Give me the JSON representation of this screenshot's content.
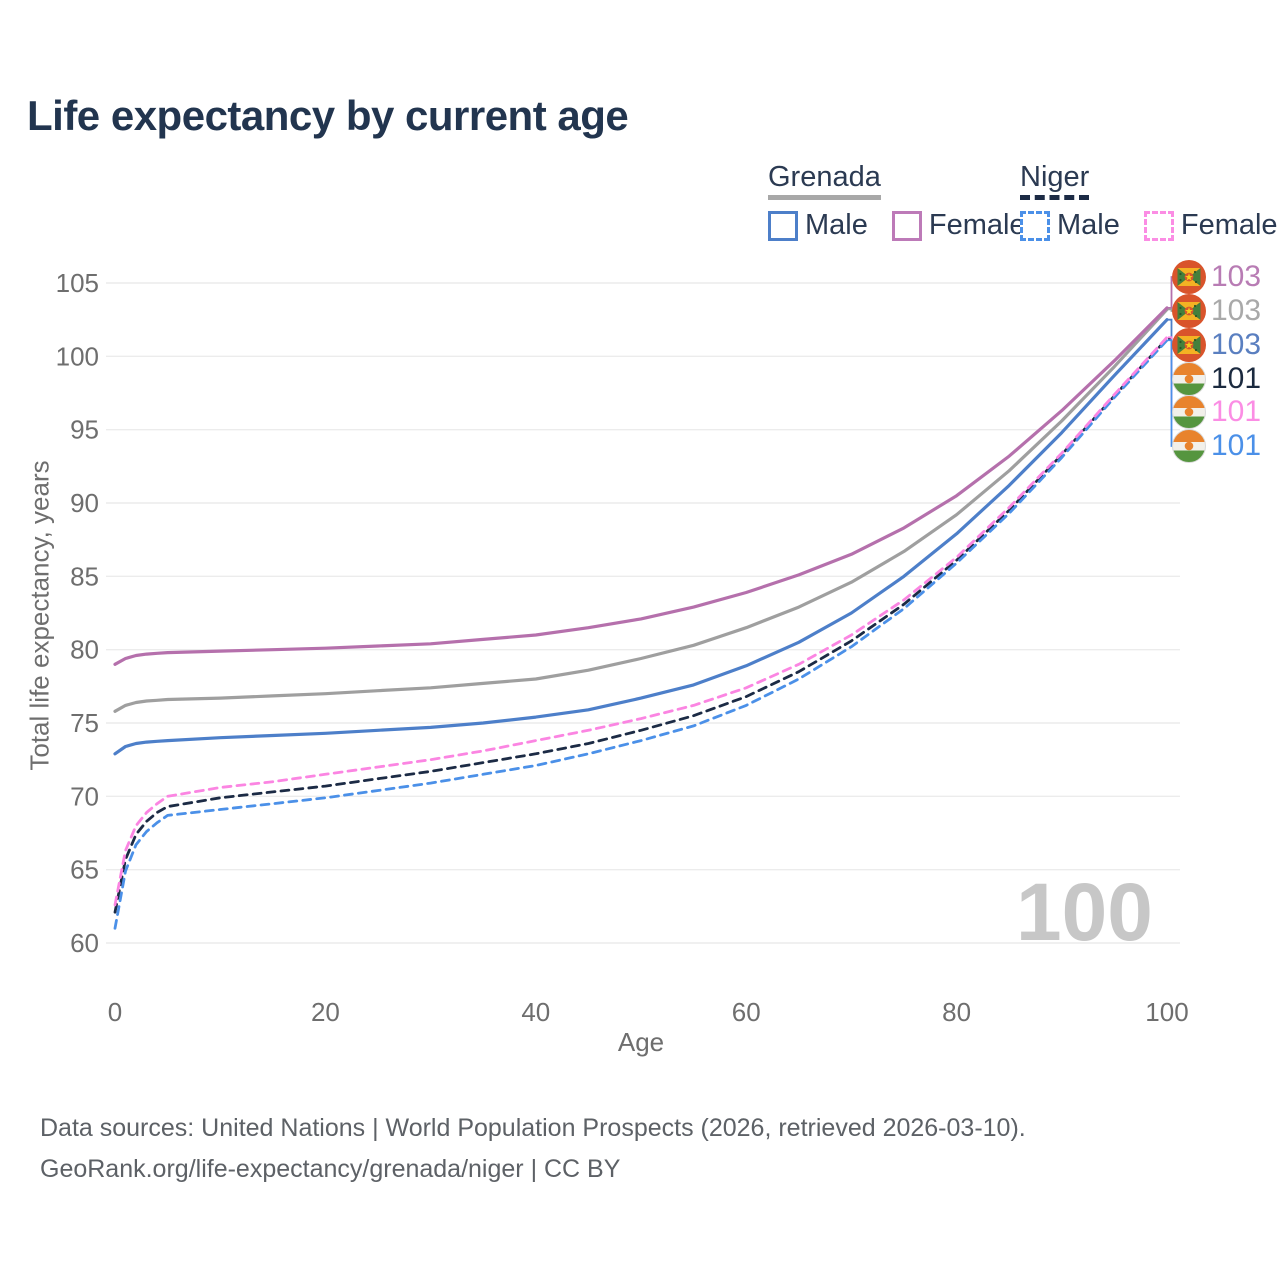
{
  "header": {
    "title": "Life expectancy by current age"
  },
  "legend": {
    "groups": [
      {
        "title": "Grenada",
        "line_style": "solid",
        "sample_color": "#a8a8a8",
        "items": [
          {
            "label": "Male",
            "color": "#4d7fc9",
            "style": "solid"
          },
          {
            "label": "Female",
            "color": "#bd7ab8",
            "style": "solid"
          }
        ]
      },
      {
        "title": "Niger",
        "line_style": "dashed",
        "sample_color": "#1c2b45",
        "items": [
          {
            "label": "Male",
            "color": "#4b90e8",
            "style": "dashed"
          },
          {
            "label": "Female",
            "color": "#fb8de4",
            "style": "dashed"
          }
        ]
      }
    ]
  },
  "chart_data": {
    "type": "line",
    "title": "Life expectancy by current age",
    "xlabel": "Age",
    "ylabel": "Total life expectancy, years",
    "xlim": [
      0,
      100
    ],
    "ylim": [
      60,
      105
    ],
    "xticks": [
      0,
      20,
      40,
      60,
      80,
      100
    ],
    "yticks": [
      60,
      65,
      70,
      75,
      80,
      85,
      90,
      95,
      100,
      105
    ],
    "grid": "horizontal",
    "legend_position": "top-right",
    "frame_label": "100",
    "x": [
      0,
      1,
      2,
      3,
      4,
      5,
      10,
      15,
      20,
      25,
      30,
      35,
      40,
      45,
      50,
      55,
      60,
      65,
      70,
      75,
      80,
      85,
      90,
      95,
      100
    ],
    "series": [
      {
        "name": "Grenada Female",
        "color": "#b570ac",
        "dash": "solid",
        "end_label": "103",
        "values": [
          79.0,
          79.4,
          79.6,
          79.7,
          79.75,
          79.8,
          79.9,
          80.0,
          80.1,
          80.25,
          80.4,
          80.7,
          81.0,
          81.5,
          82.1,
          82.9,
          83.9,
          85.1,
          86.5,
          88.3,
          90.5,
          93.2,
          96.3,
          99.7,
          103.3
        ]
      },
      {
        "name": "Grenada",
        "color": "#9f9f9f",
        "dash": "solid",
        "end_label": "103",
        "values": [
          75.8,
          76.2,
          76.4,
          76.5,
          76.55,
          76.6,
          76.7,
          76.85,
          77.0,
          77.2,
          77.4,
          77.7,
          78.0,
          78.6,
          79.4,
          80.3,
          81.5,
          82.9,
          84.6,
          86.7,
          89.2,
          92.2,
          95.6,
          99.3,
          103.2
        ]
      },
      {
        "name": "Grenada Male",
        "color": "#4d7fc9",
        "dash": "solid",
        "end_label": "103",
        "values": [
          72.9,
          73.4,
          73.6,
          73.7,
          73.75,
          73.8,
          74.0,
          74.15,
          74.3,
          74.5,
          74.7,
          75.0,
          75.4,
          75.9,
          76.7,
          77.6,
          78.9,
          80.5,
          82.5,
          85.0,
          87.9,
          91.2,
          94.8,
          98.7,
          102.5
        ]
      },
      {
        "name": "Niger",
        "color": "#1c2b45",
        "dash": "dashed",
        "end_label": "101",
        "values": [
          62.1,
          65.7,
          67.4,
          68.3,
          68.9,
          69.3,
          69.9,
          70.3,
          70.7,
          71.2,
          71.7,
          72.3,
          72.9,
          73.6,
          74.5,
          75.5,
          76.8,
          78.5,
          80.6,
          83.1,
          86.1,
          89.5,
          93.3,
          97.3,
          101.2
        ]
      },
      {
        "name": "Niger Female",
        "color": "#fb85e2",
        "dash": "dashed",
        "end_label": "101",
        "values": [
          62.6,
          66.3,
          68.0,
          68.9,
          69.5,
          70.0,
          70.6,
          71.0,
          71.5,
          72.0,
          72.5,
          73.1,
          73.8,
          74.5,
          75.3,
          76.2,
          77.4,
          79.0,
          81.0,
          83.4,
          86.3,
          89.7,
          93.4,
          97.4,
          101.3
        ]
      },
      {
        "name": "Niger Male",
        "color": "#4b90e8",
        "dash": "dashed",
        "end_label": "101",
        "values": [
          61.0,
          64.9,
          66.7,
          67.6,
          68.2,
          68.7,
          69.1,
          69.5,
          69.9,
          70.4,
          70.9,
          71.5,
          72.1,
          72.9,
          73.8,
          74.8,
          76.2,
          78.0,
          80.2,
          82.8,
          85.9,
          89.3,
          93.1,
          97.2,
          101.1
        ]
      }
    ],
    "end_labels": [
      {
        "value": "103",
        "color": "#b87cb4",
        "flag": "grenada"
      },
      {
        "value": "103",
        "color": "#a9a9a9",
        "flag": "grenada"
      },
      {
        "value": "103",
        "color": "#5a7fc0",
        "flag": "grenada"
      },
      {
        "value": "101",
        "color": "#1b2a3f",
        "flag": "niger"
      },
      {
        "value": "101",
        "color": "#fb8de4",
        "flag": "niger"
      },
      {
        "value": "101",
        "color": "#4b90e8",
        "flag": "niger"
      }
    ]
  },
  "footer": {
    "line1": "Data sources: United Nations | World Population Prospects (2026, retrieved 2026-03-10).",
    "line2": "GeoRank.org/life-expectancy/grenada/niger | CC BY"
  }
}
